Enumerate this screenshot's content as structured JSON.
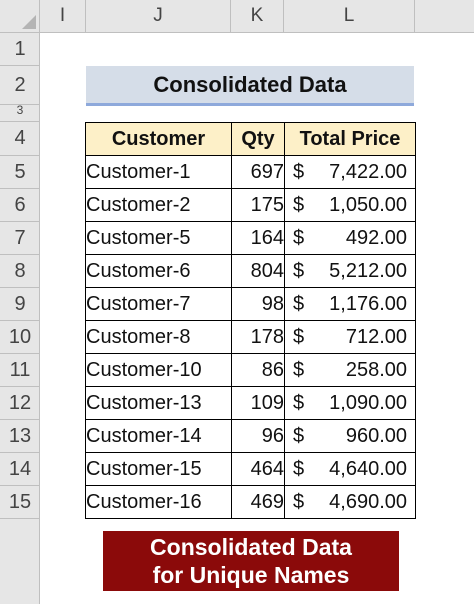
{
  "columns": [
    "I",
    "J",
    "K",
    "L"
  ],
  "rows": [
    "1",
    "2",
    "3",
    "4",
    "5",
    "6",
    "7",
    "8",
    "9",
    "10",
    "11",
    "12",
    "13",
    "14",
    "15"
  ],
  "title": "Consolidated Data",
  "table": {
    "headers": [
      "Customer",
      "Qty",
      "Total Price"
    ],
    "currency_symbol": "$",
    "rows": [
      {
        "customer": "Customer-1",
        "qty": "697",
        "price": "7,422.00"
      },
      {
        "customer": "Customer-2",
        "qty": "175",
        "price": "1,050.00"
      },
      {
        "customer": "Customer-5",
        "qty": "164",
        "price": "492.00"
      },
      {
        "customer": "Customer-6",
        "qty": "804",
        "price": "5,212.00"
      },
      {
        "customer": "Customer-7",
        "qty": "98",
        "price": "1,176.00"
      },
      {
        "customer": "Customer-8",
        "qty": "178",
        "price": "712.00"
      },
      {
        "customer": "Customer-10",
        "qty": "86",
        "price": "258.00"
      },
      {
        "customer": "Customer-13",
        "qty": "109",
        "price": "1,090.00"
      },
      {
        "customer": "Customer-14",
        "qty": "96",
        "price": "960.00"
      },
      {
        "customer": "Customer-15",
        "qty": "464",
        "price": "4,640.00"
      },
      {
        "customer": "Customer-16",
        "qty": "469",
        "price": "4,690.00"
      }
    ]
  },
  "banner": {
    "line1": "Consolidated Data",
    "line2": "for Unique Names"
  },
  "colors": {
    "header_fill": "#fdf0c8",
    "title_fill": "#d5dde8",
    "banner_fill": "#8b0a0a"
  }
}
